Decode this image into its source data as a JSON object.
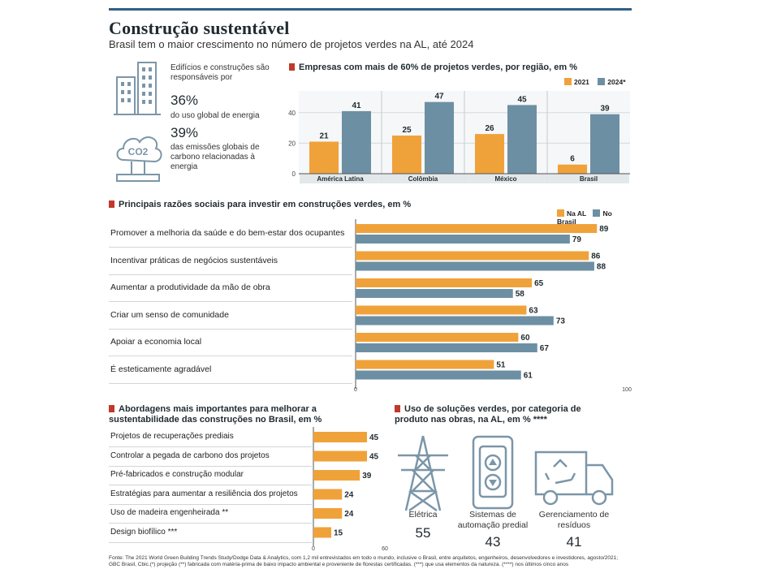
{
  "header": {
    "title": "Construção sustentável",
    "subtitle": "Brasil tem o maior crescimento no número de projetos verdes na AL, até 2024"
  },
  "colors": {
    "orange": "#f0a23a",
    "blue": "#6d8fa3",
    "red": "#c0392b",
    "icon": "#7b96a8"
  },
  "stats": {
    "buildings_text1": "Edifícios e construções são responsáveis por",
    "buildings_pct": "36%",
    "buildings_text2": "do uso global de energia",
    "co2_pct": "39%",
    "co2_text": "das emissões globais de carbono relacionadas à energia",
    "co2_icon_label": "CO2"
  },
  "chart_data": [
    {
      "type": "bar",
      "title": "Empresas com mais de 60% de projetos verdes, por região, em %",
      "categories": [
        "América Latina",
        "Colômbia",
        "México",
        "Brasil"
      ],
      "series": [
        {
          "name": "2021",
          "values": [
            21,
            25,
            26,
            6
          ]
        },
        {
          "name": "2024*",
          "values": [
            41,
            47,
            45,
            39
          ]
        }
      ],
      "yticks": [
        0,
        20,
        40
      ],
      "ylim": [
        0,
        50
      ],
      "legend": "top-right"
    },
    {
      "type": "bar",
      "orientation": "horizontal",
      "title": "Principais razões sociais para investir em construções verdes, em %",
      "categories": [
        "Promover a melhoria da saúde e do bem-estar dos ocupantes",
        "Incentivar práticas de negócios sustentáveis",
        "Aumentar a produtividade da mão de obra",
        "Criar um senso de comunidade",
        "Apoiar a economia local",
        "É esteticamente agradável"
      ],
      "series": [
        {
          "name": "Na AL",
          "values": [
            89,
            86,
            65,
            63,
            60,
            51
          ]
        },
        {
          "name": "No Brasil",
          "values": [
            79,
            88,
            58,
            73,
            67,
            61
          ]
        }
      ],
      "xticks": [
        0,
        100
      ],
      "xlim": [
        0,
        100
      ],
      "legend": "top-right"
    },
    {
      "type": "bar",
      "orientation": "horizontal",
      "title": "Abordagens mais importantes para melhorar a sustentabilidade das construções no Brasil, em %",
      "categories": [
        "Projetos de recuperações prediais",
        "Controlar a pegada de carbono dos projetos",
        "Pré-fabricados e construção modular",
        "Estratégias para aumentar a resiliência dos projetos",
        "Uso de madeira engenheirada **",
        "Design biofílico ***"
      ],
      "values": [
        45,
        45,
        39,
        24,
        24,
        15
      ],
      "xticks": [
        0,
        60
      ],
      "xlim": [
        0,
        60
      ]
    }
  ],
  "products": {
    "title": "Uso de soluções verdes, por categoria de produto nas obras, na AL, em % ****",
    "items": [
      {
        "label": "Elétrica",
        "value": "55"
      },
      {
        "label": "Sistemas de automação predial",
        "value": "43"
      },
      {
        "label": "Gerenciamento de resíduos",
        "value": "41"
      }
    ]
  },
  "footnote": "Fonte: The 2021 World Green Building Trends Study/Dodge Data & Analytics, com 1,2 mil entrevistados em todo o mundo, inclusive o Brasil, entre arquitetos, engenheiros, desenvolvedores e investidores, agosto/2021; GBC Brasil, Cbic.(*) projeção (**) fabricada com matéria-prima de baixo impacto ambiental e proveniente de florestas certificadas. (***) que usa elementos da natureza. (****) nos últimos cinco anos"
}
